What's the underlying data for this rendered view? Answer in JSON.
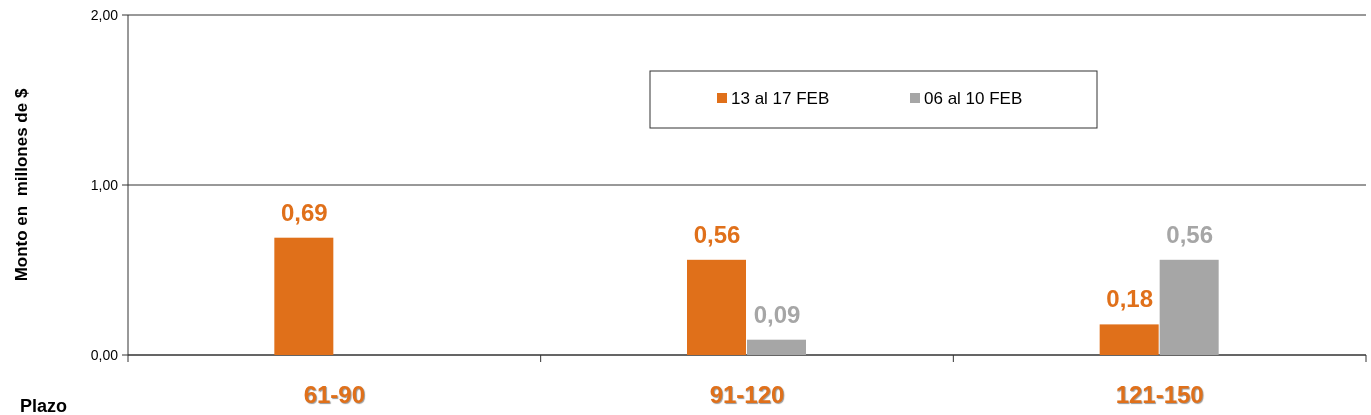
{
  "chart_data": {
    "type": "bar",
    "xlabel": "Plazo",
    "ylabel": "Monto en  millones de $",
    "categories": [
      "61-90",
      "91-120",
      "121-150"
    ],
    "series": [
      {
        "name": "13 al 17 FEB",
        "color": "#e0701a",
        "values": [
          0.69,
          0.56,
          0.18
        ],
        "value_labels": [
          "0,69",
          "0,56",
          "0,18"
        ]
      },
      {
        "name": "06 al 10 FEB",
        "color": "#a6a6a6",
        "values": [
          null,
          0.09,
          0.56
        ],
        "value_labels": [
          null,
          "0,09",
          "0,56"
        ]
      }
    ],
    "ylim": [
      0,
      2
    ],
    "yticks": [
      {
        "value": 0,
        "label": "0,00"
      },
      {
        "value": 1,
        "label": "1,00"
      },
      {
        "value": 2,
        "label": "2,00"
      }
    ],
    "grid": "y",
    "legend": "top right"
  }
}
